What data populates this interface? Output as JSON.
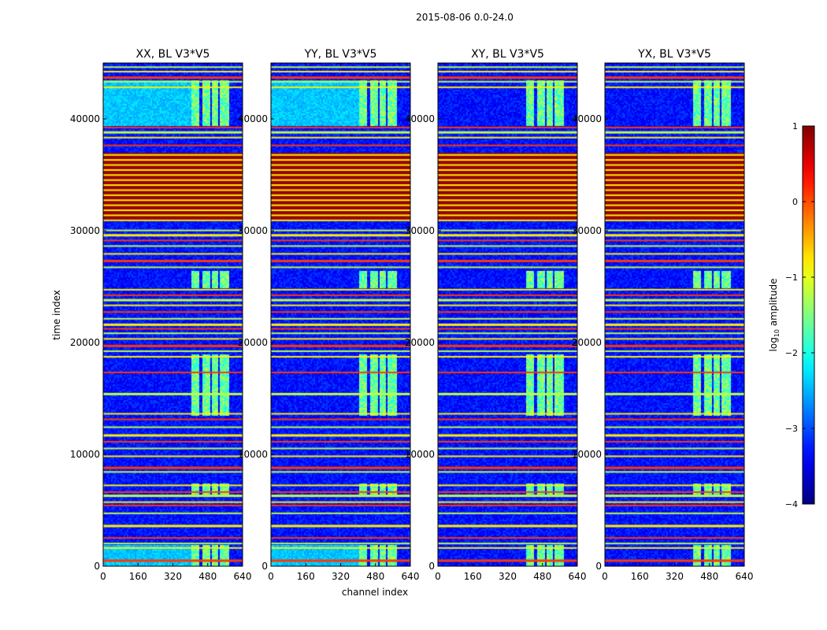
{
  "figure": {
    "suptitle": "2015-08-06 0.0-24.0"
  },
  "chart_data": {
    "type": "heatmap",
    "suptitle": "2015-08-06 0.0-24.0",
    "xlabel": "channel index",
    "ylabel": "time index",
    "xlim": [
      0,
      640
    ],
    "ylim": [
      0,
      45000
    ],
    "xticks": [
      0,
      160,
      320,
      480,
      640
    ],
    "yticks": [
      0,
      10000,
      20000,
      30000,
      40000
    ],
    "panels": [
      {
        "title": "XX, BL V3*V5",
        "pol": "XX"
      },
      {
        "title": "YY, BL V3*V5",
        "pol": "YY"
      },
      {
        "title": "XY, BL V3*V5",
        "pol": "XY"
      },
      {
        "title": "YX, BL V3*V5",
        "pol": "YX"
      }
    ],
    "colorbar": {
      "label": "log₁₀ amplitude",
      "label_main": "log",
      "label_sub": "10",
      "label_tail": " amplitude",
      "range": [
        -4,
        1
      ],
      "ticks": [
        "1",
        "0",
        "−1",
        "−2",
        "−3",
        "−4"
      ],
      "tick_values": [
        1,
        0,
        -1,
        -2,
        -3,
        -4
      ],
      "colormap": "jet"
    },
    "background_level": -3.3,
    "bright_channel_blocks": [
      [
        400,
        440
      ],
      [
        450,
        485
      ],
      [
        492,
        525
      ],
      [
        532,
        575
      ]
    ],
    "saturated_band": [
      31000,
      37000
    ],
    "bright_time_bands": [
      [
        0,
        2000
      ],
      [
        6500,
        7500
      ],
      [
        13500,
        19000
      ],
      [
        25000,
        26500
      ],
      [
        39500,
        43500
      ]
    ],
    "flag_lines_time": [
      600,
      1700,
      2100,
      2600,
      3700,
      4800,
      5500,
      5800,
      6400,
      6700,
      7300,
      8500,
      8900,
      9900,
      10600,
      11200,
      11800,
      12500,
      13200,
      13700,
      15500,
      17400,
      18800,
      19300,
      19800,
      20400,
      20900,
      21300,
      21700,
      22200,
      22800,
      23400,
      23900,
      24300,
      24800,
      26800,
      27400,
      28000,
      28700,
      29200,
      29700,
      30100,
      37700,
      38400,
      38900,
      39300,
      42900,
      43400,
      43800,
      44300,
      44700
    ]
  }
}
